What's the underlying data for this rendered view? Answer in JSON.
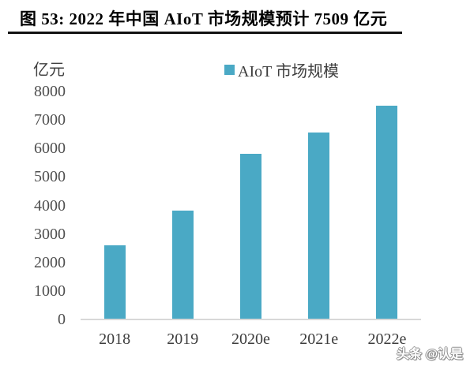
{
  "figure": {
    "title": "图 53: 2022 年中国 AIoT 市场规模预计 7509 亿元",
    "unit_label": "亿元",
    "watermark": "头条 @认是"
  },
  "legend": {
    "label": "AIoT 市场规模",
    "swatch_color": "#4AA9C5"
  },
  "colors": {
    "bar": "#4AA9C5",
    "axis_line": "#D8D8D8",
    "tick_text": "#4F4F4F",
    "category_text": "#3D3D3D",
    "title_text": "#000000"
  },
  "chart_data": {
    "type": "bar",
    "title": "2022 年中国 AIoT 市场规模预计 7509 亿元",
    "series_name": "AIoT 市场规模",
    "categories": [
      "2018",
      "2019",
      "2020e",
      "2021e",
      "2022e"
    ],
    "values": [
      2590,
      3808,
      5815,
      6548,
      7509
    ],
    "xlabel": "",
    "ylabel": "亿元",
    "ylim": [
      0,
      8000
    ],
    "ytick_interval": 1000,
    "ytick_labels": [
      "0",
      "1000",
      "2000",
      "3000",
      "4000",
      "5000",
      "6000",
      "7000",
      "8000"
    ],
    "grid": false,
    "legend_position": "top",
    "bar_color": "#4AA9C5"
  }
}
